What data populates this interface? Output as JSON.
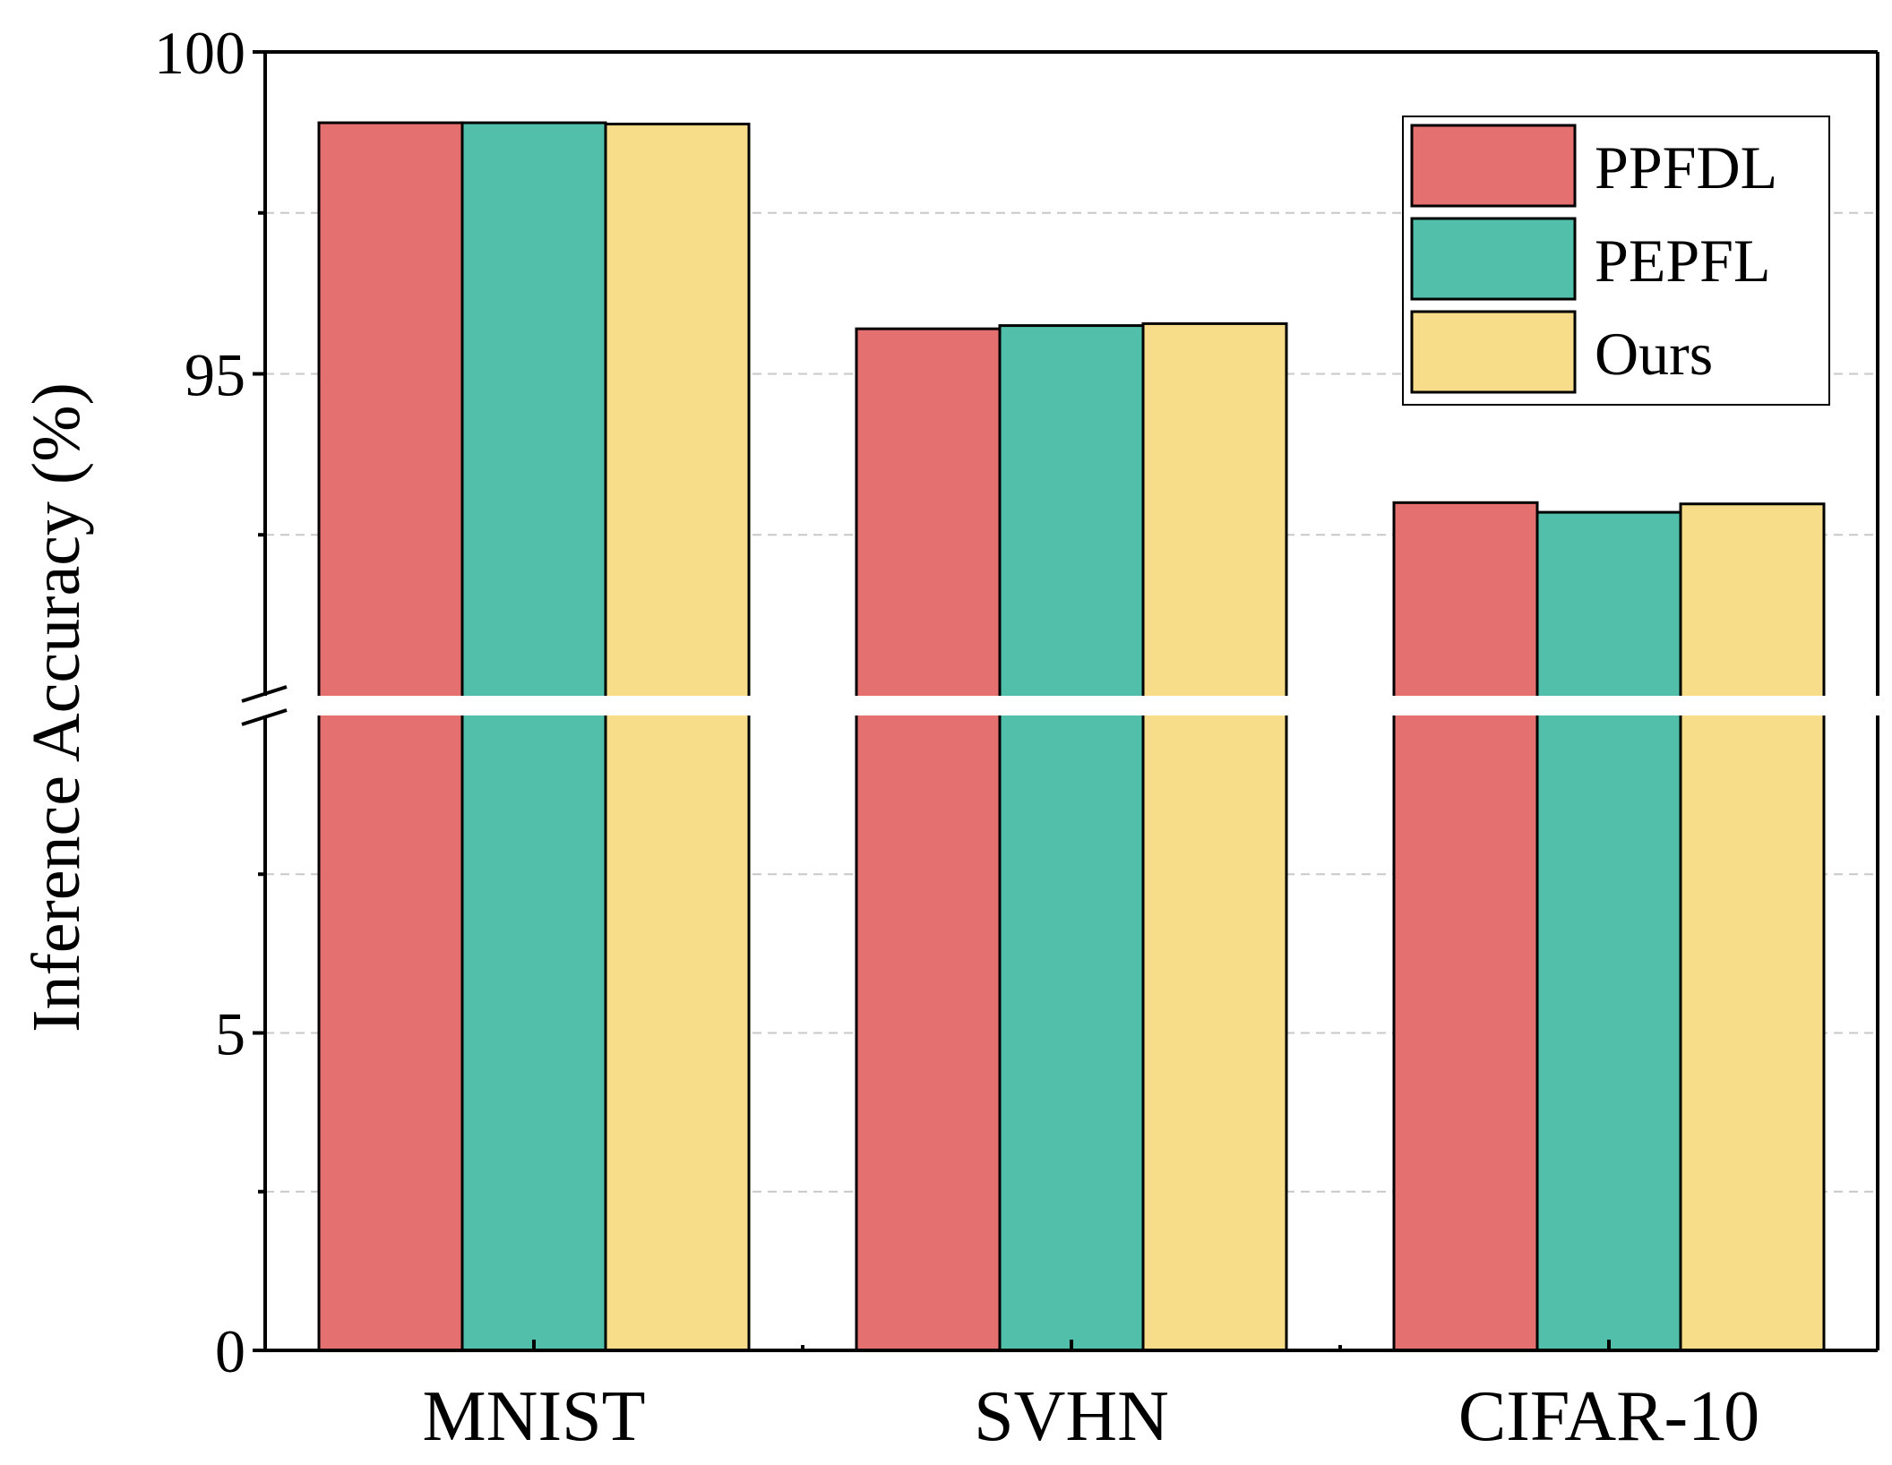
{
  "chart_data": {
    "type": "bar",
    "title": "",
    "xlabel": "",
    "ylabel": "Inference Accuracy (%)",
    "categories": [
      "MNIST",
      "SVHN",
      "CIFAR-10"
    ],
    "series": [
      {
        "name": "PPFDL",
        "color": "#E57070",
        "values": [
          98.9,
          95.7,
          93.0
        ]
      },
      {
        "name": "PEPFL",
        "color": "#52BFAB",
        "values": [
          98.9,
          95.75,
          92.85
        ]
      },
      {
        "name": "Ours",
        "color": "#F7DD89",
        "values": [
          98.88,
          95.78,
          92.98
        ]
      }
    ],
    "y_axis_break": {
      "lower_segment": [
        0,
        10
      ],
      "upper_segment": [
        90,
        100
      ]
    },
    "ytick_labels": [
      {
        "value": 0,
        "label": "0"
      },
      {
        "value": 5,
        "label": "5"
      },
      {
        "value": 95,
        "label": "95"
      },
      {
        "value": 100,
        "label": "100"
      }
    ],
    "y_minor_ticks": [
      2.5,
      7.5,
      92.5,
      97.5
    ],
    "gridlines": "dashed",
    "legend_position": "top-right"
  }
}
